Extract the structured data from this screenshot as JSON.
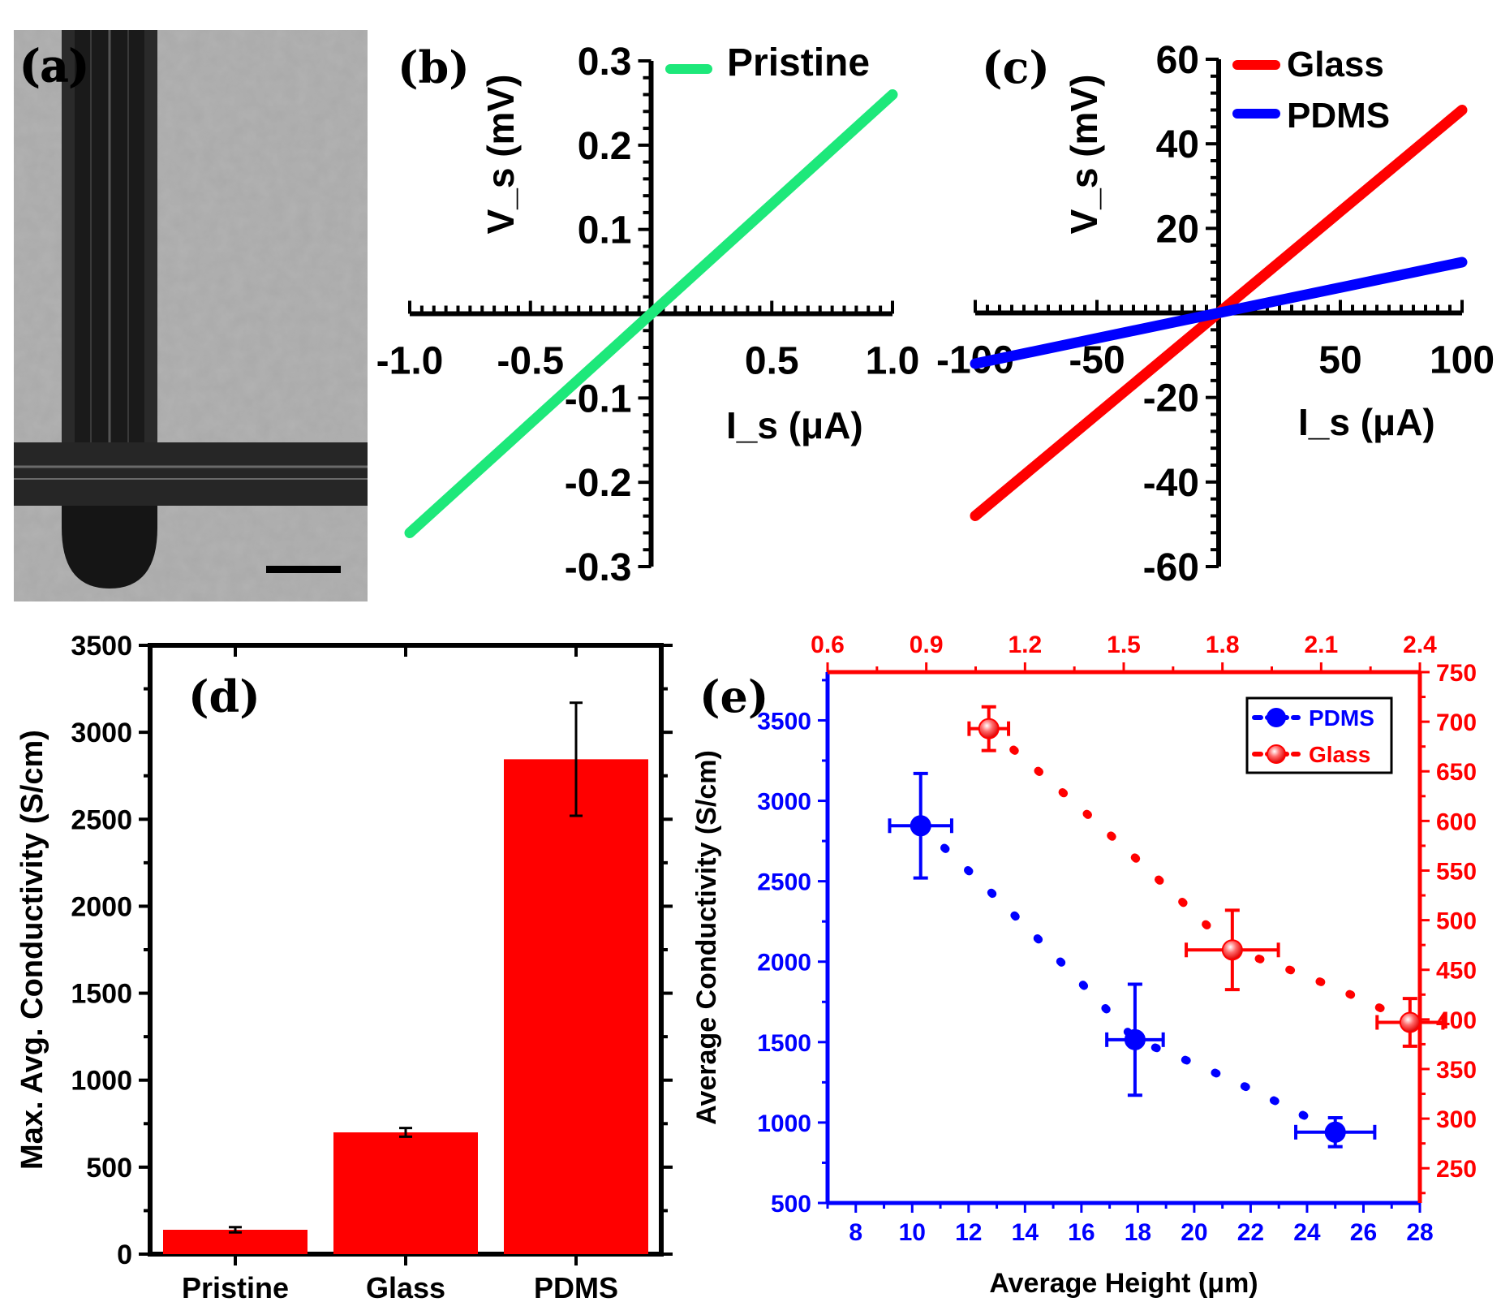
{
  "panels": {
    "a": "(a)",
    "b": "(b)",
    "c": "(c)",
    "d": "(d)",
    "e": "(e)"
  },
  "colors": {
    "pristine": "#1de87a",
    "glass": "#ff0000",
    "pdms": "#0000ff",
    "bar": "#ff0000",
    "axis": "#000000"
  },
  "chart_data": [
    {
      "id": "b",
      "type": "line",
      "xlabel": "I_s (μA)",
      "ylabel": "V_s (mV)",
      "xlim": [
        -1.0,
        1.0
      ],
      "ylim": [
        -0.3,
        0.3
      ],
      "xticks": [
        "-1.0",
        "-0.5",
        "0.5",
        "1.0"
      ],
      "yticks": [
        "-0.3",
        "-0.2",
        "-0.1",
        "0.1",
        "0.2",
        "0.3"
      ],
      "series": [
        {
          "name": "Pristine",
          "x": [
            -1.0,
            -0.5,
            0.0,
            0.5,
            1.0
          ],
          "y": [
            -0.26,
            -0.13,
            0.0,
            0.13,
            0.26
          ]
        }
      ],
      "legend": "top-right"
    },
    {
      "id": "c",
      "type": "line",
      "xlabel": "I_s (μA)",
      "ylabel": "V_s (mV)",
      "xlim": [
        -100,
        100
      ],
      "ylim": [
        -60,
        60
      ],
      "xticks": [
        "-100",
        "-50",
        "50",
        "100"
      ],
      "yticks": [
        "-60",
        "-40",
        "-20",
        "20",
        "40",
        "60"
      ],
      "series": [
        {
          "name": "Glass",
          "x": [
            -100,
            0,
            100
          ],
          "y": [
            -48,
            0,
            48
          ]
        },
        {
          "name": "PDMS",
          "x": [
            -100,
            0,
            100
          ],
          "y": [
            -12,
            0,
            12
          ]
        }
      ],
      "legend": "top-right"
    },
    {
      "id": "d",
      "type": "bar",
      "ylabel": "Max. Avg. Conductivity (S/cm)",
      "categories": [
        "Pristine",
        "Glass",
        "PDMS"
      ],
      "values": [
        140,
        700,
        2845
      ],
      "errors": [
        15,
        25,
        325
      ],
      "ylim": [
        0,
        3500
      ],
      "yticks": [
        "0",
        "500",
        "1000",
        "1500",
        "2000",
        "2500",
        "3000",
        "3500"
      ]
    },
    {
      "id": "e",
      "type": "scatter",
      "xlabel": "Average Height (μm)",
      "ylabel": "Average Conductivity (S/cm)",
      "xlim": [
        7,
        28
      ],
      "xticks": [
        "8",
        "10",
        "12",
        "14",
        "16",
        "18",
        "20",
        "22",
        "24",
        "26",
        "28"
      ],
      "ylim": [
        500,
        3800
      ],
      "yticks": [
        "500",
        "1000",
        "1500",
        "2000",
        "2500",
        "3000",
        "3500"
      ],
      "x2lim": [
        0.6,
        2.4
      ],
      "x2ticks": [
        "0.6",
        "0.9",
        "1.2",
        "1.5",
        "1.8",
        "2.1",
        "2.4"
      ],
      "y2lim": [
        215,
        750
      ],
      "y2ticks": [
        "250",
        "300",
        "350",
        "400",
        "450",
        "500",
        "550",
        "600",
        "650",
        "700",
        "750"
      ],
      "series": [
        {
          "name": "PDMS",
          "axes": "bottom-left",
          "x": [
            10.3,
            17.9,
            25.0
          ],
          "y": [
            2845,
            1515,
            940
          ],
          "xerr": [
            1.1,
            1.0,
            1.4
          ],
          "yerr": [
            325,
            345,
            90
          ]
        },
        {
          "name": "Glass",
          "axes": "top-right",
          "x": [
            1.09,
            1.83,
            2.37
          ],
          "y": [
            693,
            470,
            397
          ],
          "xerr": [
            0.06,
            0.14,
            0.1
          ],
          "yerr": [
            22,
            40,
            24
          ]
        }
      ],
      "legend": "top-right"
    }
  ]
}
